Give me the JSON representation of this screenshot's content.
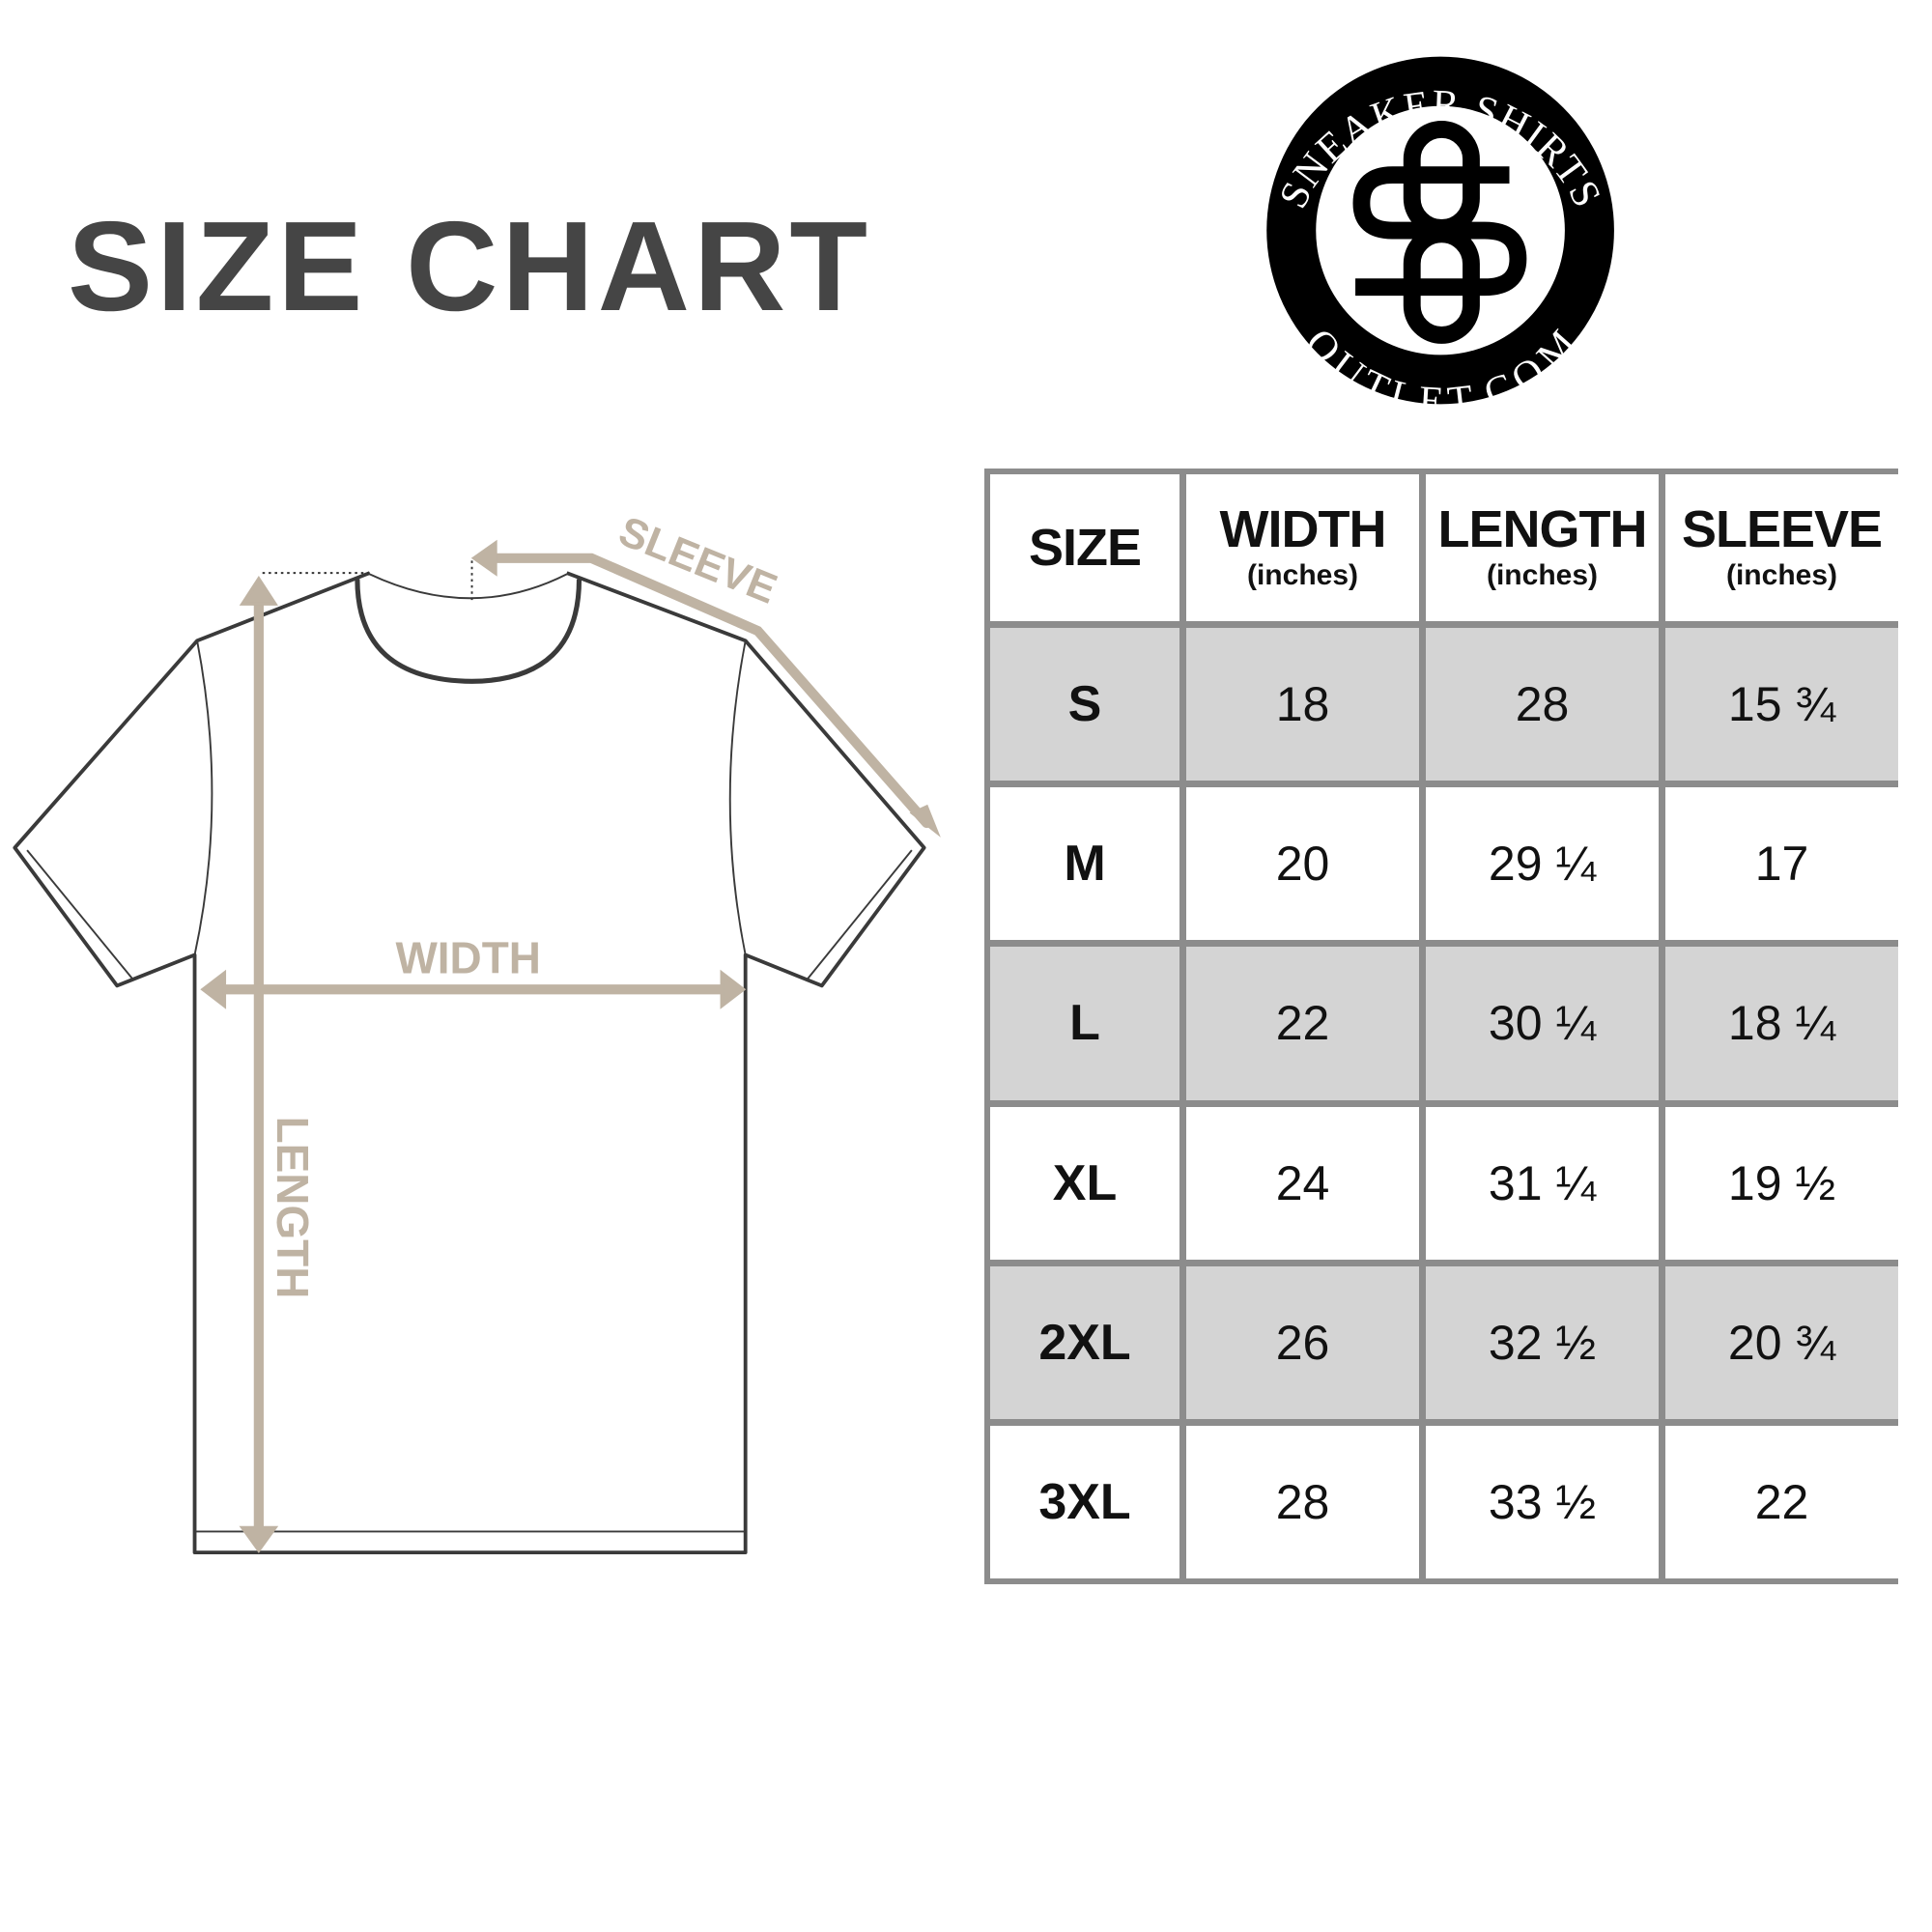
{
  "title": "SIZE CHART",
  "logo": {
    "top_text": "SNEAKER SHIRTS",
    "bottom_text": "OUTLET.COM",
    "monogram": "SO",
    "color": "#000000"
  },
  "diagram": {
    "sleeve_label": "SLEEVE",
    "width_label": "WIDTH",
    "length_label": "LENGTH",
    "arrow_color": "#bfb3a3"
  },
  "table": {
    "headers": [
      {
        "label": "SIZE",
        "unit": ""
      },
      {
        "label": "WIDTH",
        "unit": "(inches)"
      },
      {
        "label": "LENGTH",
        "unit": "(inches)"
      },
      {
        "label": "SLEEVE",
        "unit": "(inches)"
      }
    ],
    "rows": [
      [
        "S",
        "18",
        "28",
        "15 ¾"
      ],
      [
        "M",
        "20",
        "29 ¼",
        "17"
      ],
      [
        "L",
        "22",
        "30 ¼",
        "18 ¼"
      ],
      [
        "XL",
        "24",
        "31 ¼",
        "19 ½"
      ],
      [
        "2XL",
        "26",
        "32 ½",
        "20 ¾"
      ],
      [
        "3XL",
        "28",
        "33 ½",
        "22"
      ]
    ],
    "stripe_color": "#d4d4d4",
    "border_color": "#8c8c8c"
  }
}
